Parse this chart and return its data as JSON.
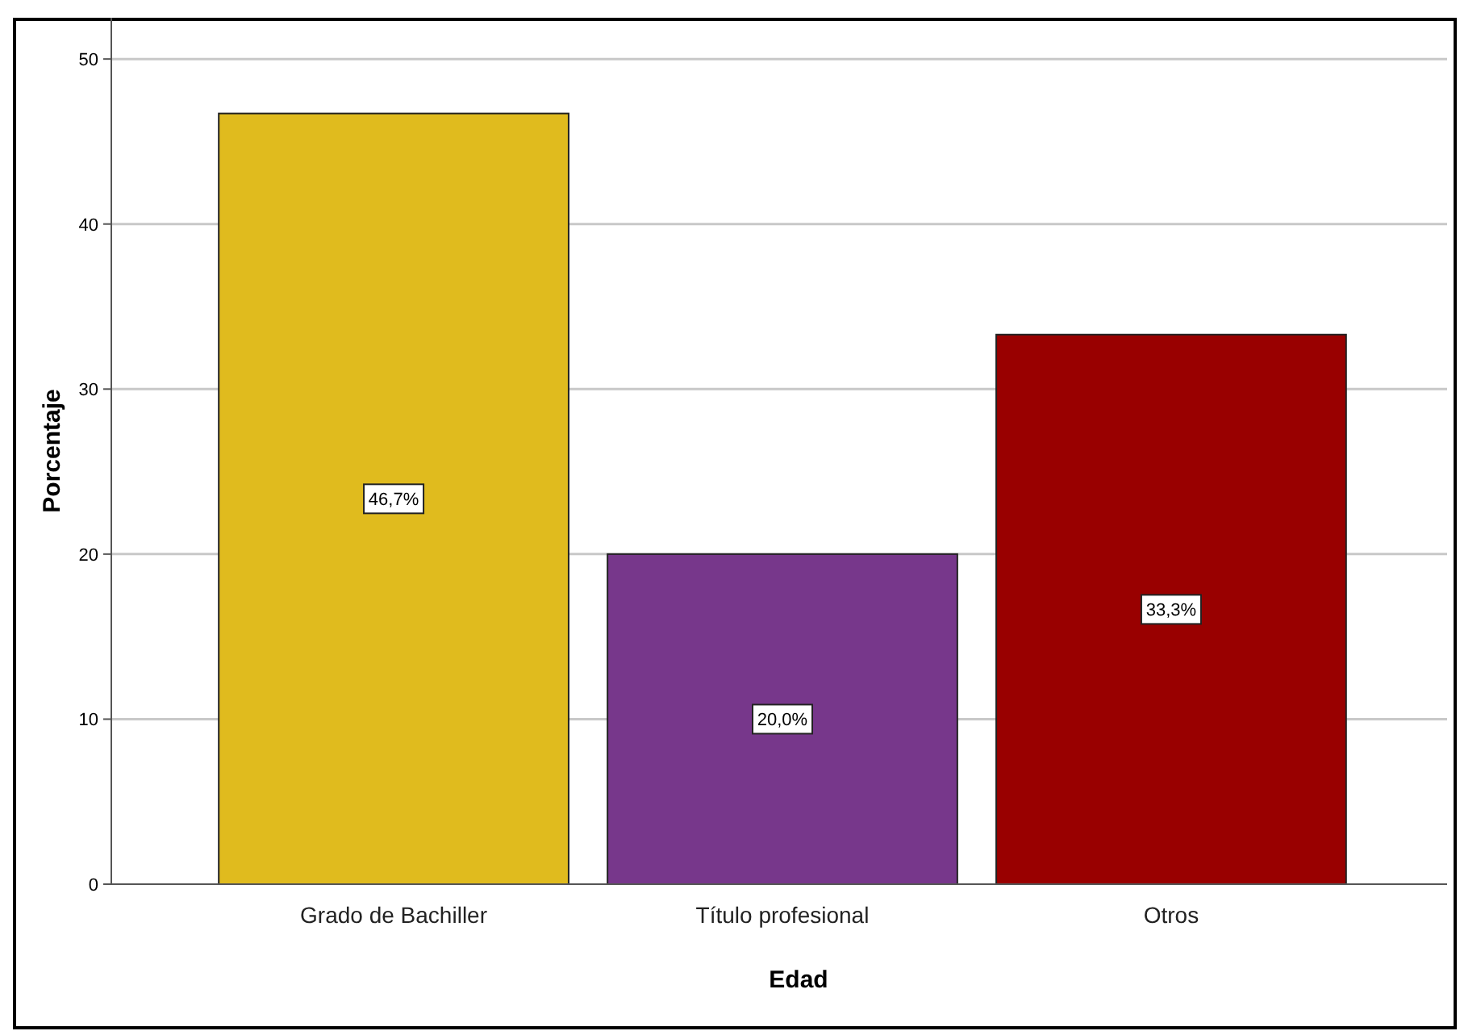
{
  "chart_data": {
    "type": "bar",
    "xlabel": "Edad",
    "ylabel": "Porcentaje",
    "categories": [
      "Grado de Bachiller",
      "Título profesional",
      "Otros"
    ],
    "values": [
      46.7,
      20.0,
      33.3
    ],
    "colors": [
      "#e0bb1e",
      "#77378b",
      "#990000"
    ],
    "value_labels": [
      "46,7%",
      "20,0%",
      "33,3%"
    ],
    "ylim": [
      0,
      52.5
    ],
    "yticks": [
      0,
      10,
      20,
      30,
      40,
      50
    ],
    "grid": "y"
  }
}
